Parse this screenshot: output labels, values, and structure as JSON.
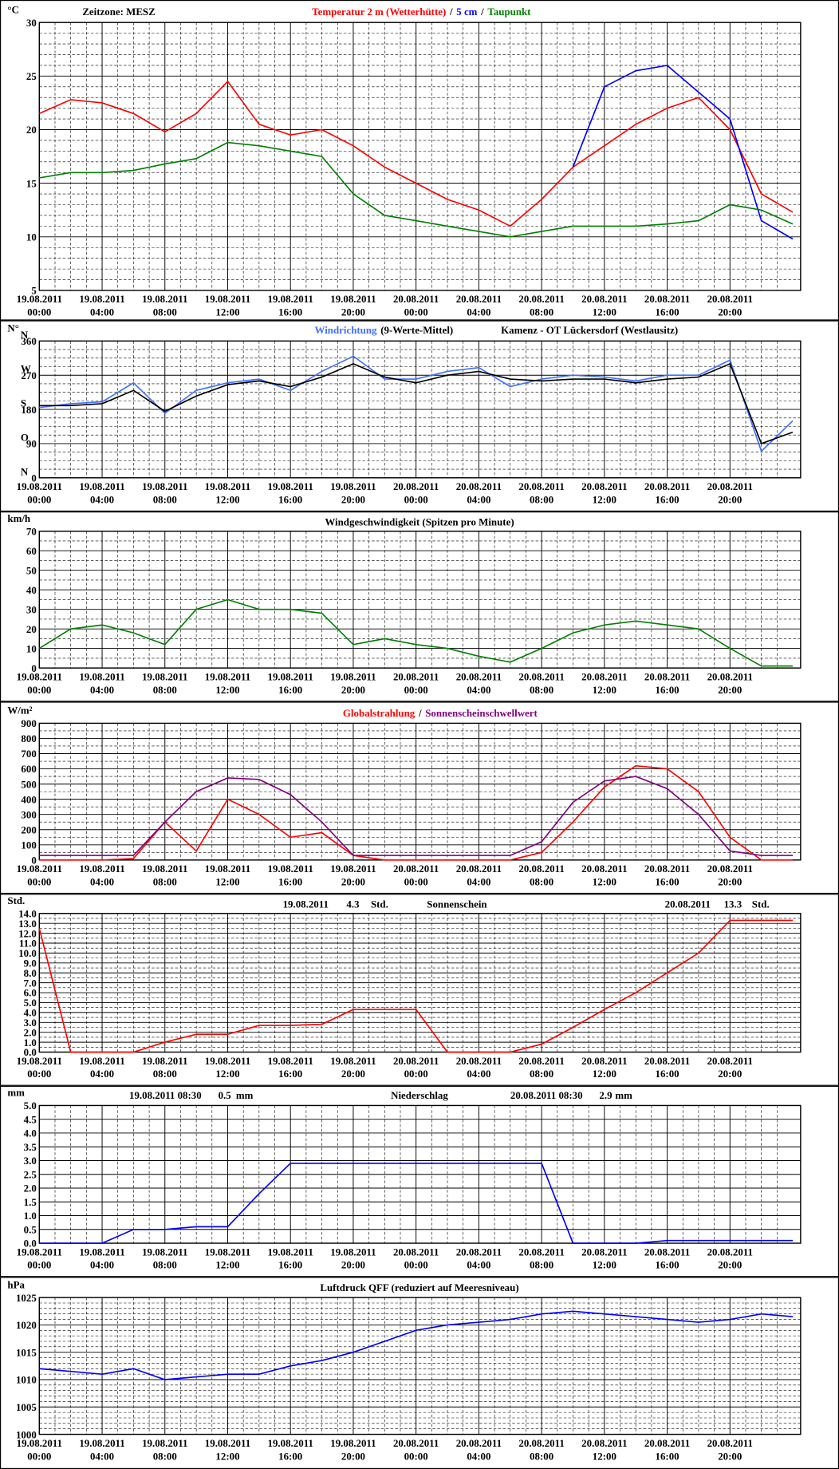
{
  "chart_data": [
    {
      "type": "line",
      "unit": "°C",
      "note": "Zeitzone: MESZ",
      "legend_separator": "/",
      "grid": true,
      "x": [
        0,
        2,
        4,
        6,
        8,
        10,
        12,
        14,
        16,
        18,
        20,
        22,
        24,
        26,
        28,
        30,
        32,
        34,
        36,
        38,
        40,
        42,
        44,
        46,
        48
      ],
      "xlim": [
        0,
        48.5
      ],
      "xticks": [
        {
          "value": 0,
          "label": "19.08.2011 00:00"
        },
        {
          "value": 4,
          "label": "19.08.2011 04:00"
        },
        {
          "value": 8,
          "label": "19.08.2011 08:00"
        },
        {
          "value": 12,
          "label": "19.08.2011 12:00"
        },
        {
          "value": 16,
          "label": "19.08.2011 16:00"
        },
        {
          "value": 20,
          "label": "19.08.2011 20:00"
        },
        {
          "value": 24,
          "label": "20.08.2011 00:00"
        },
        {
          "value": 28,
          "label": "20.08.2011 04:00"
        },
        {
          "value": 32,
          "label": "20.08.2011 08:00"
        },
        {
          "value": 36,
          "label": "20.08.2011 12:00"
        },
        {
          "value": 40,
          "label": "20.08.2011 16:00"
        },
        {
          "value": 44,
          "label": "20.08.2011 20:00"
        }
      ],
      "ylim": [
        5,
        30
      ],
      "yticks": [
        5,
        10,
        15,
        20,
        25,
        30
      ],
      "series": [
        {
          "name": "Temperatur 2 m (Wetterhütte)",
          "color": "#ff0000",
          "values": [
            21.5,
            22.8,
            22.5,
            21.5,
            19.8,
            21.5,
            24.5,
            20.5,
            19.5,
            20,
            18.5,
            16.5,
            15,
            13.5,
            12.5,
            11,
            13.5,
            16.5,
            18.5,
            20.5,
            22,
            23,
            20,
            14,
            12.3
          ]
        },
        {
          "name": "5 cm",
          "color": "#0000ff",
          "values": [
            null,
            null,
            null,
            null,
            null,
            null,
            null,
            null,
            null,
            null,
            null,
            null,
            null,
            null,
            null,
            null,
            null,
            16.5,
            24,
            25.5,
            26,
            23.5,
            21,
            11.5,
            9.8
          ]
        },
        {
          "name": "Taupunkt",
          "color": "#008000",
          "values": [
            15.5,
            16,
            16,
            16.2,
            16.8,
            17.3,
            18.8,
            18.5,
            18,
            17.5,
            14,
            12,
            11.5,
            11,
            10.5,
            10,
            10.5,
            11,
            11,
            11,
            11.2,
            11.5,
            13,
            12.5,
            11.2
          ]
        }
      ]
    },
    {
      "type": "line",
      "unit": "N°",
      "subtitle": "Kamenz - OT Lückersdorf (Westlausitz)",
      "grid": true,
      "x": [
        0,
        2,
        4,
        6,
        8,
        10,
        12,
        14,
        16,
        18,
        20,
        22,
        24,
        26,
        28,
        30,
        32,
        34,
        36,
        38,
        40,
        42,
        44,
        46,
        48
      ],
      "xlim": [
        0,
        48.5
      ],
      "xticks": [
        {
          "value": 0,
          "label": "19.08.2011 00:00"
        },
        {
          "value": 4,
          "label": "19.08.2011 04:00"
        },
        {
          "value": 8,
          "label": "19.08.2011 08:00"
        },
        {
          "value": 12,
          "label": "19.08.2011 12:00"
        },
        {
          "value": 16,
          "label": "19.08.2011 16:00"
        },
        {
          "value": 20,
          "label": "19.08.2011 20:00"
        },
        {
          "value": 24,
          "label": "20.08.2011 00:00"
        },
        {
          "value": 28,
          "label": "20.08.2011 04:00"
        },
        {
          "value": 32,
          "label": "20.08.2011 08:00"
        },
        {
          "value": 36,
          "label": "20.08.2011 12:00"
        },
        {
          "value": 40,
          "label": "20.08.2011 16:00"
        },
        {
          "value": 44,
          "label": "20.08.2011 20:00"
        }
      ],
      "ylim": [
        0,
        360
      ],
      "yticks": [
        0,
        90,
        180,
        270,
        360
      ],
      "compass_labels": [
        {
          "value": 0,
          "label": "N"
        },
        {
          "value": 90,
          "label": "O"
        },
        {
          "value": 180,
          "label": "S"
        },
        {
          "value": 270,
          "label": "W"
        },
        {
          "value": 360,
          "label": "N"
        }
      ],
      "series": [
        {
          "name": "Windrichtung",
          "color": "#3f6fff",
          "values": [
            185,
            195,
            200,
            250,
            170,
            230,
            250,
            260,
            230,
            280,
            320,
            260,
            260,
            280,
            290,
            240,
            260,
            270,
            265,
            255,
            270,
            270,
            310,
            70,
            150
          ]
        },
        {
          "name": "(9-Werte-Mittel)",
          "color": "#000000",
          "values": [
            190,
            190,
            195,
            230,
            175,
            215,
            245,
            255,
            240,
            265,
            300,
            265,
            250,
            270,
            280,
            260,
            255,
            260,
            260,
            250,
            260,
            265,
            300,
            90,
            120
          ]
        }
      ]
    },
    {
      "type": "line",
      "unit": "km/h",
      "title": "Windgeschwindigkeit (Spitzen pro Minute)",
      "grid": true,
      "x": [
        0,
        2,
        4,
        6,
        8,
        10,
        12,
        14,
        16,
        18,
        20,
        22,
        24,
        26,
        28,
        30,
        32,
        34,
        36,
        38,
        40,
        42,
        44,
        46,
        48
      ],
      "xlim": [
        0,
        48.5
      ],
      "xticks": [
        {
          "value": 0,
          "label": "19.08.2011 00:00"
        },
        {
          "value": 4,
          "label": "19.08.2011 04:00"
        },
        {
          "value": 8,
          "label": "19.08.2011 08:00"
        },
        {
          "value": 12,
          "label": "19.08.2011 12:00"
        },
        {
          "value": 16,
          "label": "19.08.2011 16:00"
        },
        {
          "value": 20,
          "label": "19.08.2011 20:00"
        },
        {
          "value": 24,
          "label": "20.08.2011 00:00"
        },
        {
          "value": 28,
          "label": "20.08.2011 04:00"
        },
        {
          "value": 32,
          "label": "20.08.2011 08:00"
        },
        {
          "value": 36,
          "label": "20.08.2011 12:00"
        },
        {
          "value": 40,
          "label": "20.08.2011 16:00"
        },
        {
          "value": 44,
          "label": "20.08.2011 20:00"
        }
      ],
      "ylim": [
        0,
        70
      ],
      "yticks": [
        0,
        10,
        20,
        30,
        40,
        50,
        60,
        70
      ],
      "series": [
        {
          "color": "#008000",
          "values": [
            10,
            20,
            22,
            18,
            12,
            30,
            35,
            30,
            30,
            28,
            12,
            15,
            12,
            10,
            6,
            3,
            10,
            18,
            22,
            24,
            22,
            20,
            10,
            1,
            1
          ]
        }
      ]
    },
    {
      "type": "line",
      "unit": "W/m²",
      "legend_separator": "/",
      "grid": true,
      "x": [
        0,
        2,
        4,
        6,
        8,
        10,
        12,
        14,
        16,
        18,
        20,
        22,
        24,
        26,
        28,
        30,
        32,
        34,
        36,
        38,
        40,
        42,
        44,
        46,
        48
      ],
      "xlim": [
        0,
        48.5
      ],
      "xticks": [
        {
          "value": 0,
          "label": "19.08.2011 00:00"
        },
        {
          "value": 4,
          "label": "19.08.2011 04:00"
        },
        {
          "value": 8,
          "label": "19.08.2011 08:00"
        },
        {
          "value": 12,
          "label": "19.08.2011 12:00"
        },
        {
          "value": 16,
          "label": "19.08.2011 16:00"
        },
        {
          "value": 20,
          "label": "19.08.2011 20:00"
        },
        {
          "value": 24,
          "label": "20.08.2011 00:00"
        },
        {
          "value": 28,
          "label": "20.08.2011 04:00"
        },
        {
          "value": 32,
          "label": "20.08.2011 08:00"
        },
        {
          "value": 36,
          "label": "20.08.2011 12:00"
        },
        {
          "value": 40,
          "label": "20.08.2011 16:00"
        },
        {
          "value": 44,
          "label": "20.08.2011 20:00"
        }
      ],
      "ylim": [
        0,
        900
      ],
      "yticks": [
        0,
        100,
        200,
        300,
        400,
        500,
        600,
        700,
        800,
        900
      ],
      "series": [
        {
          "name": "Globalstrahlung",
          "color": "#ff0000",
          "values": [
            0,
            0,
            0,
            10,
            250,
            60,
            400,
            300,
            150,
            180,
            30,
            0,
            0,
            0,
            0,
            0,
            50,
            250,
            480,
            620,
            600,
            450,
            150,
            0,
            0
          ]
        },
        {
          "name": "Sonnenscheinschwellwert",
          "color": "#800080",
          "values": [
            30,
            30,
            30,
            30,
            250,
            450,
            540,
            530,
            430,
            250,
            30,
            30,
            30,
            30,
            30,
            30,
            120,
            380,
            520,
            550,
            470,
            300,
            60,
            30,
            30
          ]
        }
      ]
    },
    {
      "type": "line",
      "unit": "Std.",
      "title": "Sonnenschein",
      "grid": true,
      "annotations": [
        {
          "date": "19.08.2011",
          "value": 4.3,
          "unit": "Std."
        },
        {
          "date": "20.08.2011",
          "value": 13.3,
          "unit": "Std."
        }
      ],
      "x": [
        0,
        2,
        4,
        6,
        8,
        10,
        12,
        14,
        16,
        18,
        20,
        22,
        24,
        26,
        28,
        30,
        32,
        34,
        36,
        38,
        40,
        42,
        44,
        46,
        48
      ],
      "xlim": [
        0,
        48.5
      ],
      "xticks": [
        {
          "value": 0,
          "label": "19.08.2011 00:00"
        },
        {
          "value": 4,
          "label": "19.08.2011 04:00"
        },
        {
          "value": 8,
          "label": "19.08.2011 08:00"
        },
        {
          "value": 12,
          "label": "19.08.2011 12:00"
        },
        {
          "value": 16,
          "label": "19.08.2011 16:00"
        },
        {
          "value": 20,
          "label": "19.08.2011 20:00"
        },
        {
          "value": 24,
          "label": "20.08.2011 00:00"
        },
        {
          "value": 28,
          "label": "20.08.2011 04:00"
        },
        {
          "value": 32,
          "label": "20.08.2011 08:00"
        },
        {
          "value": 36,
          "label": "20.08.2011 12:00"
        },
        {
          "value": 40,
          "label": "20.08.2011 16:00"
        },
        {
          "value": 44,
          "label": "20.08.2011 20:00"
        }
      ],
      "ylim": [
        0,
        14
      ],
      "yticks": [
        {
          "value": 0,
          "label": "0.0"
        },
        {
          "value": 1,
          "label": "1.0"
        },
        {
          "value": 2,
          "label": "2.0"
        },
        {
          "value": 3,
          "label": "3.0"
        },
        {
          "value": 4,
          "label": "4.0"
        },
        {
          "value": 5,
          "label": "5.0"
        },
        {
          "value": 6,
          "label": "6.0"
        },
        {
          "value": 7,
          "label": "7.0"
        },
        {
          "value": 8,
          "label": "8.0"
        },
        {
          "value": 9,
          "label": "9.0"
        },
        {
          "value": 10,
          "label": "10.0"
        },
        {
          "value": 11,
          "label": "11.0"
        },
        {
          "value": 12,
          "label": "12.0"
        },
        {
          "value": 13,
          "label": "13.0"
        },
        {
          "value": 14,
          "label": "14.0"
        }
      ],
      "series": [
        {
          "color": "#ff0000",
          "values": [
            12.5,
            0,
            0,
            0,
            1,
            1.8,
            1.8,
            2.7,
            2.7,
            2.8,
            4.3,
            4.3,
            4.3,
            0,
            0,
            0,
            0.8,
            2.5,
            4.3,
            6,
            8,
            10,
            13.3,
            13.3,
            13.3
          ]
        }
      ]
    },
    {
      "type": "line",
      "unit": "mm",
      "title": "Niederschlag",
      "grid": true,
      "annotations": [
        {
          "date": "19.08.2011 08:30",
          "value": 0.5,
          "unit": "mm"
        },
        {
          "date": "20.08.2011 08:30",
          "value": 2.9,
          "unit": "mm"
        }
      ],
      "x": [
        0,
        2,
        4,
        6,
        8,
        10,
        12,
        14,
        16,
        18,
        20,
        22,
        24,
        26,
        28,
        30,
        32,
        34,
        36,
        38,
        40,
        42,
        44,
        46,
        48
      ],
      "xlim": [
        0,
        48.5
      ],
      "xticks": [
        {
          "value": 0,
          "label": "19.08.2011 00:00"
        },
        {
          "value": 4,
          "label": "19.08.2011 04:00"
        },
        {
          "value": 8,
          "label": "19.08.2011 08:00"
        },
        {
          "value": 12,
          "label": "19.08.2011 12:00"
        },
        {
          "value": 16,
          "label": "19.08.2011 16:00"
        },
        {
          "value": 20,
          "label": "19.08.2011 20:00"
        },
        {
          "value": 24,
          "label": "20.08.2011 00:00"
        },
        {
          "value": 28,
          "label": "20.08.2011 04:00"
        },
        {
          "value": 32,
          "label": "20.08.2011 08:00"
        },
        {
          "value": 36,
          "label": "20.08.2011 12:00"
        },
        {
          "value": 40,
          "label": "20.08.2011 16:00"
        },
        {
          "value": 44,
          "label": "20.08.2011 20:00"
        }
      ],
      "ylim": [
        0,
        5
      ],
      "yticks": [
        {
          "value": 0,
          "label": "0.0"
        },
        0.5,
        {
          "value": 1,
          "label": "1.0"
        },
        1.5,
        {
          "value": 2,
          "label": "2.0"
        },
        2.5,
        {
          "value": 3,
          "label": "3.0"
        },
        3.5,
        {
          "value": 4,
          "label": "4.0"
        },
        4.5,
        {
          "value": 5,
          "label": "5.0"
        }
      ],
      "series": [
        {
          "color": "#0000ff",
          "values": [
            0,
            0,
            0,
            0.5,
            0.5,
            0.6,
            0.6,
            1.8,
            2.9,
            2.9,
            2.9,
            2.9,
            2.9,
            2.9,
            2.9,
            2.9,
            2.9,
            0,
            0,
            0,
            0.1,
            0.1,
            0.1,
            0.1,
            0.1
          ]
        }
      ]
    },
    {
      "type": "line",
      "unit": "hPa",
      "title": "Luftdruck QFF (reduziert auf Meeresniveau)",
      "grid": true,
      "x": [
        0,
        2,
        4,
        6,
        8,
        10,
        12,
        14,
        16,
        18,
        20,
        22,
        24,
        26,
        28,
        30,
        32,
        34,
        36,
        38,
        40,
        42,
        44,
        46,
        48
      ],
      "xlim": [
        0,
        48.5
      ],
      "xticks": [
        {
          "value": 0,
          "label": "19.08.2011 00:00"
        },
        {
          "value": 4,
          "label": "19.08.2011 04:00"
        },
        {
          "value": 8,
          "label": "19.08.2011 08:00"
        },
        {
          "value": 12,
          "label": "19.08.2011 12:00"
        },
        {
          "value": 16,
          "label": "19.08.2011 16:00"
        },
        {
          "value": 20,
          "label": "19.08.2011 20:00"
        },
        {
          "value": 24,
          "label": "20.08.2011 00:00"
        },
        {
          "value": 28,
          "label": "20.08.2011 04:00"
        },
        {
          "value": 32,
          "label": "20.08.2011 08:00"
        },
        {
          "value": 36,
          "label": "20.08.2011 12:00"
        },
        {
          "value": 40,
          "label": "20.08.2011 16:00"
        },
        {
          "value": 44,
          "label": "20.08.2011 20:00"
        }
      ],
      "ylim": [
        1000,
        1025
      ],
      "yticks": [
        1000,
        1005,
        1010,
        1015,
        1020,
        1025
      ],
      "series": [
        {
          "color": "#0000ff",
          "values": [
            1012,
            1011.5,
            1011,
            1012,
            1010,
            1010.5,
            1011,
            1011,
            1012.5,
            1013.5,
            1015,
            1017,
            1019,
            1020,
            1020.5,
            1021,
            1022,
            1022.5,
            1022,
            1021.5,
            1021,
            1020.5,
            1021,
            1022,
            1021.5
          ]
        }
      ]
    }
  ]
}
